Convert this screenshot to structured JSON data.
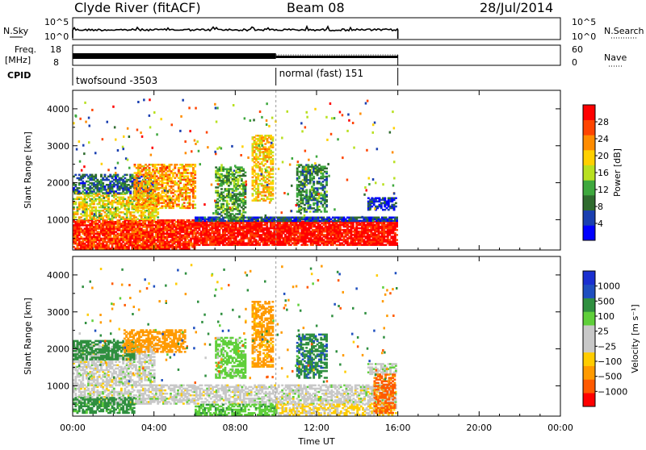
{
  "header": {
    "station": "Clyde River (fitACF)",
    "beam": "Beam 08",
    "date": "28/Jul/2014"
  },
  "nsky": {
    "label": "N.Sky",
    "tick_top": "10^5",
    "tick_bottom": "10^0",
    "right_tick_top": "10^5",
    "right_tick_bottom": "10^0",
    "right_label": "N.Search"
  },
  "freq": {
    "label_line1": "Freq.",
    "label_line2": "[MHz]",
    "tick_top": "18",
    "tick_bottom": "8",
    "right_tick_top": "60",
    "right_tick_bottom": "0",
    "right_label": "Nave"
  },
  "cpid": {
    "label": "CPID",
    "segments": [
      {
        "text": "twofsound -3503",
        "start_hour": 0,
        "end_hour": 10
      },
      {
        "text": "normal (fast) 151",
        "start_hour": 10,
        "end_hour": 16
      }
    ]
  },
  "colors": {
    "power": [
      "#0000ff",
      "#1a3fb0",
      "#2f6b2f",
      "#3ea83e",
      "#b8e020",
      "#ffd000",
      "#ff8c00",
      "#ff4400",
      "#ff0000"
    ],
    "velocity": [
      "#ff0000",
      "#ff5a00",
      "#ff9a00",
      "#ffcc00",
      "#c8c8c8",
      "#c8c8c8",
      "#5fcf3a",
      "#2f8f3f",
      "#1f4fbf",
      "#1a2fd0"
    ]
  },
  "chart_data": [
    {
      "type": "heatmap",
      "name": "power",
      "ylabel": "Slant Range [km]",
      "xlim": [
        0,
        24
      ],
      "ylim": [
        180,
        4500
      ],
      "yticks": [
        1000,
        2000,
        3000,
        4000
      ],
      "colorbar": {
        "label": "Power [dB]",
        "range": [
          0,
          32
        ],
        "ticks": [
          4,
          8,
          12,
          16,
          20,
          24,
          28
        ],
        "tick_labels": [
          "4",
          "8",
          "12",
          "16",
          "20",
          "24",
          "28"
        ]
      },
      "data_end_hour": 16,
      "regions": [
        {
          "t0": 0.0,
          "t1": 6.0,
          "r0": 200,
          "r1": 1000,
          "level": 28
        },
        {
          "t0": 0.0,
          "t1": 4.2,
          "r0": 1000,
          "r1": 1700,
          "level": 18
        },
        {
          "t0": 0.0,
          "t1": 4.0,
          "r0": 1700,
          "r1": 2200,
          "level": 8
        },
        {
          "t0": 3.0,
          "t1": 6.0,
          "r0": 1300,
          "r1": 2500,
          "level": 22
        },
        {
          "t0": 6.0,
          "t1": 15.9,
          "r0": 300,
          "r1": 950,
          "level": 30
        },
        {
          "t0": 6.0,
          "t1": 15.9,
          "r0": 950,
          "r1": 1050,
          "level": 6
        },
        {
          "t0": 14.5,
          "t1": 15.9,
          "r0": 1250,
          "r1": 1600,
          "level": 4
        },
        {
          "t0": 7.0,
          "t1": 8.5,
          "r0": 1000,
          "r1": 2400,
          "level": 12
        },
        {
          "t0": 8.8,
          "t1": 9.8,
          "r0": 1500,
          "r1": 3300,
          "level": 20
        },
        {
          "t0": 11.0,
          "t1": 12.5,
          "r0": 1200,
          "r1": 2500,
          "level": 10
        }
      ]
    },
    {
      "type": "heatmap",
      "name": "velocity",
      "xlabel": "Time UT",
      "ylabel": "Slant Range [km]",
      "xlim": [
        0,
        24
      ],
      "ylim": [
        180,
        4500
      ],
      "xticks": [
        0,
        4,
        8,
        12,
        16,
        20,
        24
      ],
      "xtick_labels": [
        "00:00",
        "04:00",
        "08:00",
        "12:00",
        "16:00",
        "20:00",
        "00:00"
      ],
      "yticks": [
        1000,
        2000,
        3000,
        4000
      ],
      "colorbar": {
        "label": "Velocity [m s⁻¹]",
        "range": [
          -1500,
          1500
        ],
        "ticks": [
          -1000,
          -500,
          -100,
          -25,
          25,
          100,
          500,
          1000
        ],
        "tick_labels": [
          "−1000",
          "−500",
          "−100",
          "−25",
          "25",
          "100",
          "500",
          "1000"
        ]
      },
      "data_end_hour": 16,
      "regions": [
        {
          "t0": 0.0,
          "t1": 15.9,
          "r0": 500,
          "r1": 1000,
          "level": 0
        },
        {
          "t0": 0.0,
          "t1": 4.0,
          "r0": 1000,
          "r1": 2100,
          "level": 0
        },
        {
          "t0": 0.0,
          "t1": 3.0,
          "r0": 250,
          "r1": 700,
          "level": 150
        },
        {
          "t0": 0.0,
          "t1": 3.0,
          "r0": 1700,
          "r1": 2200,
          "level": 200
        },
        {
          "t0": 2.5,
          "t1": 5.5,
          "r0": 1900,
          "r1": 2500,
          "level": -200
        },
        {
          "t0": 6.0,
          "t1": 10.0,
          "r0": 200,
          "r1": 500,
          "level": 80
        },
        {
          "t0": 10.0,
          "t1": 15.9,
          "r0": 200,
          "r1": 500,
          "level": -30
        },
        {
          "t0": 14.5,
          "t1": 15.9,
          "r0": 1300,
          "r1": 1600,
          "level": 10
        },
        {
          "t0": 14.8,
          "t1": 15.8,
          "r0": 250,
          "r1": 1300,
          "level": -600
        },
        {
          "t0": 8.8,
          "t1": 9.8,
          "r0": 1500,
          "r1": 3300,
          "level": -150
        },
        {
          "t0": 11.0,
          "t1": 12.5,
          "r0": 1200,
          "r1": 2400,
          "level": 400
        },
        {
          "t0": 7.0,
          "t1": 8.5,
          "r0": 1200,
          "r1": 2300,
          "level": 50
        }
      ]
    }
  ]
}
